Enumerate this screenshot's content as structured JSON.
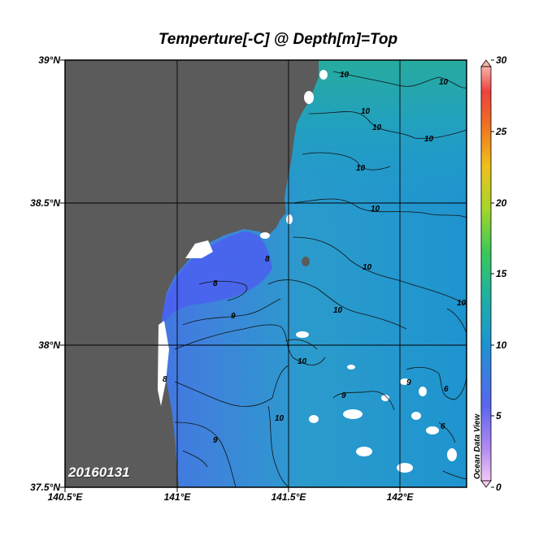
{
  "title": "Temperture[-C] @ Depth[m]=Top",
  "date_label": "20160131",
  "watermark": "Ocean Data View",
  "lat_labels": [
    "39°N",
    "38.5°N",
    "38°N",
    "37.5°N"
  ],
  "lon_labels": [
    "140.5°E",
    "141°E",
    "141.5°E",
    "142°E"
  ],
  "colorbar": {
    "ticks": [
      "30",
      "25",
      "20",
      "15",
      "10",
      "5",
      "0"
    ]
  },
  "contour_labels": [
    "10",
    "10",
    "10",
    "10",
    "10",
    "10",
    "10",
    "10",
    "10",
    "10",
    "10",
    "10",
    "9",
    "9",
    "9",
    "9",
    "8",
    "8",
    "8",
    "6",
    "6"
  ],
  "colors": {
    "land": "#5b5b5b",
    "sea_cold": "#4d62ea",
    "sea_mid": "#3e8ed6",
    "sea_warm": "#29a3c0"
  }
}
